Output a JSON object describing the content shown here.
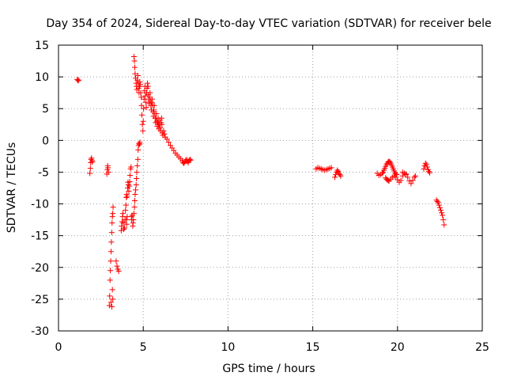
{
  "chart_data": {
    "type": "scatter",
    "title": "Day 354 of 2024, Sidereal Day-to-day VTEC variation (SDTVAR) for receiver bele",
    "xlabel": "GPS time / hours",
    "ylabel": "SDTVAR / TECUs",
    "xlim": [
      0,
      25
    ],
    "ylim": [
      -30,
      15
    ],
    "xticks": [
      0,
      5,
      10,
      15,
      20,
      25
    ],
    "yticks": [
      -30,
      -25,
      -20,
      -15,
      -10,
      -5,
      0,
      5,
      10,
      15
    ],
    "grid": true,
    "marker": "+",
    "series": [
      {
        "name": "SDTVAR",
        "color": "#ff0000",
        "points": [
          [
            1.1,
            9.6
          ],
          [
            1.15,
            9.4
          ],
          [
            1.2,
            9.5
          ],
          [
            1.85,
            -5.2
          ],
          [
            1.88,
            -4.4
          ],
          [
            1.9,
            -3.5
          ],
          [
            1.92,
            -3.0
          ],
          [
            1.95,
            -2.8
          ],
          [
            1.98,
            -3.2
          ],
          [
            2.0,
            -3.4
          ],
          [
            2.85,
            -5.3
          ],
          [
            2.88,
            -4.6
          ],
          [
            2.9,
            -4.0
          ],
          [
            2.92,
            -4.3
          ],
          [
            2.95,
            -5.0
          ],
          [
            3.0,
            -26.0
          ],
          [
            3.02,
            -24.5
          ],
          [
            3.04,
            -22.0
          ],
          [
            3.06,
            -20.5
          ],
          [
            3.08,
            -19.0
          ],
          [
            3.1,
            -17.5
          ],
          [
            3.12,
            -16.0
          ],
          [
            3.14,
            -14.5
          ],
          [
            3.16,
            -13.0
          ],
          [
            3.18,
            -12.0
          ],
          [
            3.2,
            -11.5
          ],
          [
            3.22,
            -10.5
          ],
          [
            3.1,
            -25.5
          ],
          [
            3.15,
            -26.2
          ],
          [
            3.2,
            -25.0
          ],
          [
            3.18,
            -23.5
          ],
          [
            3.4,
            -19.0
          ],
          [
            3.45,
            -19.8
          ],
          [
            3.5,
            -20.3
          ],
          [
            3.55,
            -20.6
          ],
          [
            3.7,
            -14.2
          ],
          [
            3.72,
            -13.5
          ],
          [
            3.75,
            -12.8
          ],
          [
            3.78,
            -12.0
          ],
          [
            3.8,
            -11.5
          ],
          [
            3.82,
            -13.0
          ],
          [
            3.85,
            -14.0
          ],
          [
            3.9,
            -13.8
          ],
          [
            3.92,
            -12.5
          ],
          [
            3.95,
            -11.0
          ],
          [
            3.98,
            -10.2
          ],
          [
            4.0,
            -12.5
          ],
          [
            4.02,
            -13.2
          ],
          [
            4.05,
            -12.0
          ],
          [
            4.0,
            -9.0
          ],
          [
            4.02,
            -8.5
          ],
          [
            4.05,
            -8.8
          ],
          [
            4.08,
            -7.5
          ],
          [
            4.1,
            -6.6
          ],
          [
            4.12,
            -7.0
          ],
          [
            4.15,
            -8.0
          ],
          [
            4.18,
            -7.2
          ],
          [
            4.2,
            -6.5
          ],
          [
            4.22,
            -5.5
          ],
          [
            4.25,
            -4.5
          ],
          [
            4.28,
            -4.2
          ],
          [
            4.3,
            -12.0
          ],
          [
            4.32,
            -12.5
          ],
          [
            4.35,
            -11.8
          ],
          [
            4.38,
            -13.5
          ],
          [
            4.4,
            -13.0
          ],
          [
            4.42,
            -12.5
          ],
          [
            4.45,
            -11.5
          ],
          [
            4.48,
            -10.5
          ],
          [
            4.5,
            -9.5
          ],
          [
            4.52,
            -8.5
          ],
          [
            4.55,
            -7.8
          ],
          [
            4.58,
            -7.0
          ],
          [
            4.6,
            -6.0
          ],
          [
            4.62,
            -5.0
          ],
          [
            4.65,
            -4.0
          ],
          [
            4.68,
            -3.0
          ],
          [
            4.7,
            -1.5
          ],
          [
            4.72,
            -0.8
          ],
          [
            4.75,
            -0.5
          ],
          [
            4.78,
            -0.6
          ],
          [
            4.8,
            -0.3
          ],
          [
            4.45,
            13.2
          ],
          [
            4.48,
            12.5
          ],
          [
            4.5,
            11.5
          ],
          [
            4.52,
            10.5
          ],
          [
            4.55,
            9.8
          ],
          [
            4.58,
            9.0
          ],
          [
            4.6,
            8.5
          ],
          [
            4.62,
            8.0
          ],
          [
            4.65,
            9.5
          ],
          [
            4.68,
            10.2
          ],
          [
            4.7,
            9.0
          ],
          [
            4.72,
            8.2
          ],
          [
            4.75,
            7.5
          ],
          [
            4.78,
            8.5
          ],
          [
            4.8,
            9.2
          ],
          [
            4.82,
            8.8
          ],
          [
            4.85,
            7.5
          ],
          [
            4.88,
            6.8
          ],
          [
            4.9,
            5.5
          ],
          [
            4.92,
            4.0
          ],
          [
            4.95,
            2.5
          ],
          [
            4.98,
            1.5
          ],
          [
            5.0,
            3.0
          ],
          [
            5.02,
            5.0
          ],
          [
            5.05,
            6.5
          ],
          [
            5.08,
            7.8
          ],
          [
            5.1,
            8.5
          ],
          [
            5.12,
            7.0
          ],
          [
            5.15,
            6.0
          ],
          [
            5.18,
            5.2
          ],
          [
            5.2,
            7.5
          ],
          [
            5.22,
            8.2
          ],
          [
            5.25,
            9.0
          ],
          [
            5.28,
            8.5
          ],
          [
            5.3,
            7.2
          ],
          [
            5.32,
            6.5
          ],
          [
            5.35,
            5.8
          ],
          [
            5.38,
            6.8
          ],
          [
            5.4,
            7.5
          ],
          [
            5.42,
            6.2
          ],
          [
            5.45,
            5.5
          ],
          [
            5.48,
            4.8
          ],
          [
            5.5,
            6.0
          ],
          [
            5.52,
            6.5
          ],
          [
            5.55,
            5.5
          ],
          [
            5.58,
            4.5
          ],
          [
            5.6,
            3.8
          ],
          [
            5.62,
            4.8
          ],
          [
            5.65,
            5.5
          ],
          [
            5.68,
            4.2
          ],
          [
            5.7,
            3.5
          ],
          [
            5.72,
            2.8
          ],
          [
            5.75,
            3.5
          ],
          [
            5.78,
            4.2
          ],
          [
            5.8,
            3.0
          ],
          [
            5.82,
            2.2
          ],
          [
            5.85,
            2.8
          ],
          [
            5.88,
            3.5
          ],
          [
            5.9,
            2.5
          ],
          [
            5.92,
            1.8
          ],
          [
            5.95,
            2.5
          ],
          [
            5.98,
            3.2
          ],
          [
            6.0,
            2.0
          ],
          [
            6.02,
            1.5
          ],
          [
            6.05,
            2.8
          ],
          [
            6.08,
            3.5
          ],
          [
            6.1,
            2.5
          ],
          [
            6.12,
            1.2
          ],
          [
            6.15,
            0.8
          ],
          [
            6.2,
            1.5
          ],
          [
            6.25,
            1.0
          ],
          [
            6.3,
            0.5
          ],
          [
            6.4,
            0.2
          ],
          [
            6.5,
            -0.3
          ],
          [
            6.6,
            -0.8
          ],
          [
            6.7,
            -1.2
          ],
          [
            6.8,
            -1.6
          ],
          [
            6.9,
            -2.0
          ],
          [
            7.0,
            -2.3
          ],
          [
            7.1,
            -2.6
          ],
          [
            7.2,
            -2.9
          ],
          [
            7.3,
            -3.2
          ],
          [
            7.35,
            -3.5
          ],
          [
            7.4,
            -3.6
          ],
          [
            7.45,
            -3.4
          ],
          [
            7.5,
            -3.2
          ],
          [
            7.55,
            -3.0
          ],
          [
            7.6,
            -3.3
          ],
          [
            7.65,
            -3.5
          ],
          [
            7.7,
            -3.2
          ],
          [
            7.75,
            -3.0
          ],
          [
            7.8,
            -3.1
          ],
          [
            15.2,
            -4.5
          ],
          [
            15.3,
            -4.3
          ],
          [
            15.4,
            -4.4
          ],
          [
            15.5,
            -4.5
          ],
          [
            15.6,
            -4.6
          ],
          [
            15.7,
            -4.7
          ],
          [
            15.8,
            -4.6
          ],
          [
            15.9,
            -4.5
          ],
          [
            16.0,
            -4.4
          ],
          [
            16.1,
            -4.3
          ],
          [
            16.3,
            -5.8
          ],
          [
            16.35,
            -5.4
          ],
          [
            16.4,
            -5.0
          ],
          [
            16.45,
            -4.7
          ],
          [
            16.5,
            -4.9
          ],
          [
            16.55,
            -5.2
          ],
          [
            16.6,
            -5.4
          ],
          [
            16.65,
            -5.6
          ],
          [
            18.8,
            -5.2
          ],
          [
            18.9,
            -5.5
          ],
          [
            19.0,
            -5.4
          ],
          [
            19.1,
            -5.2
          ],
          [
            19.15,
            -5.0
          ],
          [
            19.2,
            -4.7
          ],
          [
            19.25,
            -4.4
          ],
          [
            19.3,
            -4.1
          ],
          [
            19.35,
            -3.8
          ],
          [
            19.4,
            -3.6
          ],
          [
            19.45,
            -3.4
          ],
          [
            19.5,
            -3.3
          ],
          [
            19.55,
            -3.4
          ],
          [
            19.6,
            -3.6
          ],
          [
            19.65,
            -3.9
          ],
          [
            19.7,
            -4.2
          ],
          [
            19.75,
            -4.5
          ],
          [
            19.8,
            -4.8
          ],
          [
            19.85,
            -5.1
          ],
          [
            19.9,
            -5.3
          ],
          [
            19.95,
            -5.4
          ],
          [
            19.3,
            -5.9
          ],
          [
            19.35,
            -6.1
          ],
          [
            19.4,
            -6.2
          ],
          [
            19.45,
            -6.3
          ],
          [
            19.5,
            -6.4
          ],
          [
            19.6,
            -6.1
          ],
          [
            19.7,
            -5.8
          ],
          [
            19.8,
            -5.6
          ],
          [
            19.9,
            -5.8
          ],
          [
            20.0,
            -6.2
          ],
          [
            20.1,
            -6.6
          ],
          [
            20.2,
            -6.3
          ],
          [
            20.3,
            -5.6
          ],
          [
            20.4,
            -5.2
          ],
          [
            20.5,
            -5.4
          ],
          [
            20.6,
            -5.8
          ],
          [
            20.7,
            -6.4
          ],
          [
            20.8,
            -6.8
          ],
          [
            20.9,
            -6.3
          ],
          [
            21.0,
            -5.8
          ],
          [
            21.05,
            -5.6
          ],
          [
            20.3,
            -5.0
          ],
          [
            20.4,
            -5.2
          ],
          [
            20.5,
            -5.3
          ],
          [
            21.55,
            -4.5
          ],
          [
            21.6,
            -4.0
          ],
          [
            21.65,
            -3.6
          ],
          [
            21.7,
            -3.8
          ],
          [
            21.75,
            -4.2
          ],
          [
            21.8,
            -4.6
          ],
          [
            21.85,
            -4.9
          ],
          [
            21.9,
            -5.1
          ],
          [
            22.3,
            -9.4
          ],
          [
            22.35,
            -9.6
          ],
          [
            22.4,
            -9.8
          ],
          [
            22.45,
            -10.2
          ],
          [
            22.5,
            -10.6
          ],
          [
            22.55,
            -11.0
          ],
          [
            22.6,
            -11.4
          ],
          [
            22.65,
            -11.8
          ],
          [
            22.7,
            -12.5
          ],
          [
            22.75,
            -13.3
          ]
        ]
      }
    ]
  }
}
